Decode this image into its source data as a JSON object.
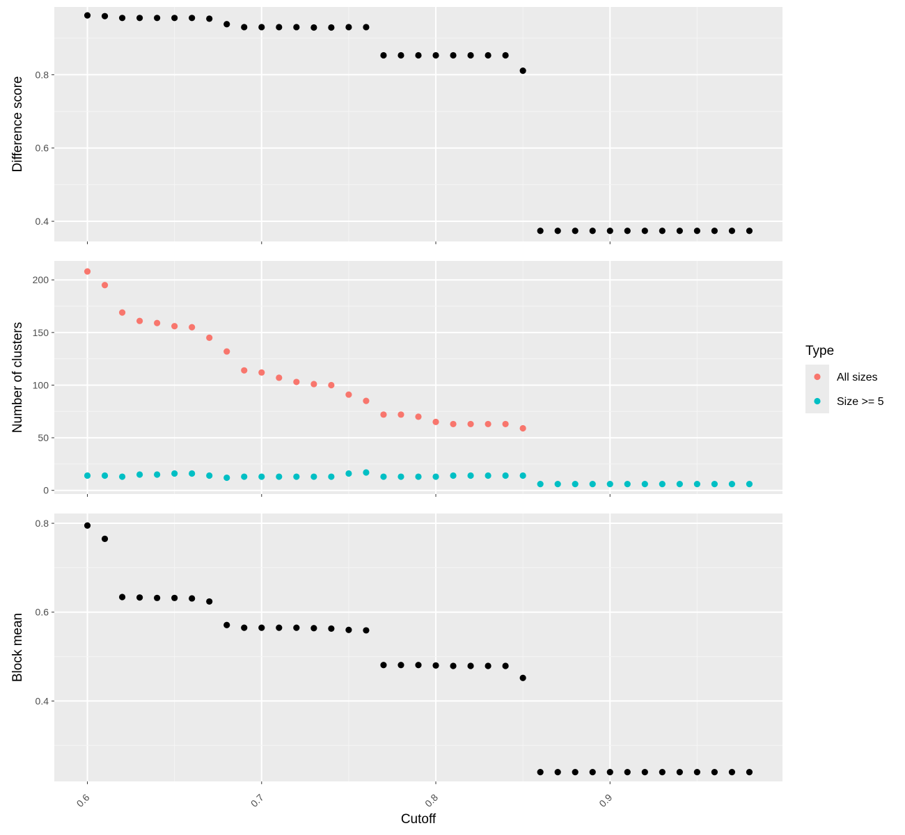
{
  "chart_data": [
    {
      "type": "scatter",
      "ylabel": "Difference score",
      "xlim": [
        0.581,
        0.999
      ],
      "ylim": [
        0.345,
        0.985
      ],
      "yticks": [
        "0.4",
        "0.6",
        "0.8"
      ],
      "grid": true,
      "series": [
        {
          "color": "#000000",
          "x": [
            0.6,
            0.61,
            0.62,
            0.63,
            0.64,
            0.65,
            0.66,
            0.67,
            0.68,
            0.69,
            0.7,
            0.71,
            0.72,
            0.73,
            0.74,
            0.75,
            0.76,
            0.77,
            0.78,
            0.79,
            0.8,
            0.81,
            0.82,
            0.83,
            0.84,
            0.85,
            0.86,
            0.87,
            0.88,
            0.89,
            0.9,
            0.91,
            0.92,
            0.93,
            0.94,
            0.95,
            0.96,
            0.97,
            0.98
          ],
          "y": [
            0.962,
            0.96,
            0.955,
            0.955,
            0.955,
            0.955,
            0.955,
            0.953,
            0.938,
            0.93,
            0.93,
            0.93,
            0.93,
            0.929,
            0.929,
            0.93,
            0.93,
            0.853,
            0.853,
            0.853,
            0.853,
            0.853,
            0.853,
            0.853,
            0.853,
            0.811,
            0.374,
            0.374,
            0.374,
            0.374,
            0.374,
            0.374,
            0.374,
            0.374,
            0.374,
            0.374,
            0.374,
            0.374,
            0.374
          ]
        }
      ]
    },
    {
      "type": "scatter",
      "ylabel": "Number of clusters",
      "xlim": [
        0.581,
        0.999
      ],
      "ylim": [
        -3.5,
        218
      ],
      "yticks": [
        "0",
        "50",
        "100",
        "150",
        "200"
      ],
      "grid": true,
      "legend": {
        "title": "Type",
        "placement": "right"
      },
      "series": [
        {
          "name": "All sizes",
          "color": "#F8766D",
          "x": [
            0.6,
            0.61,
            0.62,
            0.63,
            0.64,
            0.65,
            0.66,
            0.67,
            0.68,
            0.69,
            0.7,
            0.71,
            0.72,
            0.73,
            0.74,
            0.75,
            0.76,
            0.77,
            0.78,
            0.79,
            0.8,
            0.81,
            0.82,
            0.83,
            0.84,
            0.85
          ],
          "y": [
            208,
            195,
            169,
            161,
            159,
            156,
            155,
            145,
            132,
            114,
            112,
            107,
            103,
            101,
            100,
            91,
            85,
            72,
            72,
            70,
            65,
            63,
            63,
            63,
            63,
            59
          ]
        },
        {
          "name": "Size >= 5",
          "color": "#00BFC4",
          "x": [
            0.6,
            0.61,
            0.62,
            0.63,
            0.64,
            0.65,
            0.66,
            0.67,
            0.68,
            0.69,
            0.7,
            0.71,
            0.72,
            0.73,
            0.74,
            0.75,
            0.76,
            0.77,
            0.78,
            0.79,
            0.8,
            0.81,
            0.82,
            0.83,
            0.84,
            0.85,
            0.86,
            0.87,
            0.88,
            0.89,
            0.9,
            0.91,
            0.92,
            0.93,
            0.94,
            0.95,
            0.96,
            0.97,
            0.98
          ],
          "y": [
            14,
            14,
            13,
            15,
            15,
            16,
            16,
            14,
            12,
            13,
            13,
            13,
            13,
            13,
            13,
            16,
            17,
            13,
            13,
            13,
            13,
            14,
            14,
            14,
            14,
            14,
            6,
            6,
            6,
            6,
            6,
            6,
            6,
            6,
            6,
            6,
            6,
            6,
            6
          ]
        }
      ]
    },
    {
      "type": "scatter",
      "ylabel": "Block mean",
      "xlabel": "Cutoff",
      "xlim": [
        0.581,
        0.999
      ],
      "ylim": [
        0.219,
        0.822
      ],
      "yticks": [
        "0.4",
        "0.6",
        "0.8"
      ],
      "xticks": [
        "0.6",
        "0.7",
        "0.8",
        "0.9"
      ],
      "grid": true,
      "series": [
        {
          "color": "#000000",
          "x": [
            0.6,
            0.61,
            0.62,
            0.63,
            0.64,
            0.65,
            0.66,
            0.67,
            0.68,
            0.69,
            0.7,
            0.71,
            0.72,
            0.73,
            0.74,
            0.75,
            0.76,
            0.77,
            0.78,
            0.79,
            0.8,
            0.81,
            0.82,
            0.83,
            0.84,
            0.85,
            0.86,
            0.87,
            0.88,
            0.89,
            0.9,
            0.91,
            0.92,
            0.93,
            0.94,
            0.95,
            0.96,
            0.97,
            0.98
          ],
          "y": [
            0.795,
            0.765,
            0.634,
            0.633,
            0.632,
            0.632,
            0.631,
            0.624,
            0.571,
            0.565,
            0.565,
            0.565,
            0.565,
            0.564,
            0.563,
            0.56,
            0.559,
            0.481,
            0.481,
            0.481,
            0.48,
            0.479,
            0.479,
            0.479,
            0.479,
            0.452,
            0.24,
            0.24,
            0.24,
            0.24,
            0.24,
            0.24,
            0.24,
            0.24,
            0.24,
            0.24,
            0.24,
            0.24,
            0.24
          ]
        }
      ]
    }
  ]
}
